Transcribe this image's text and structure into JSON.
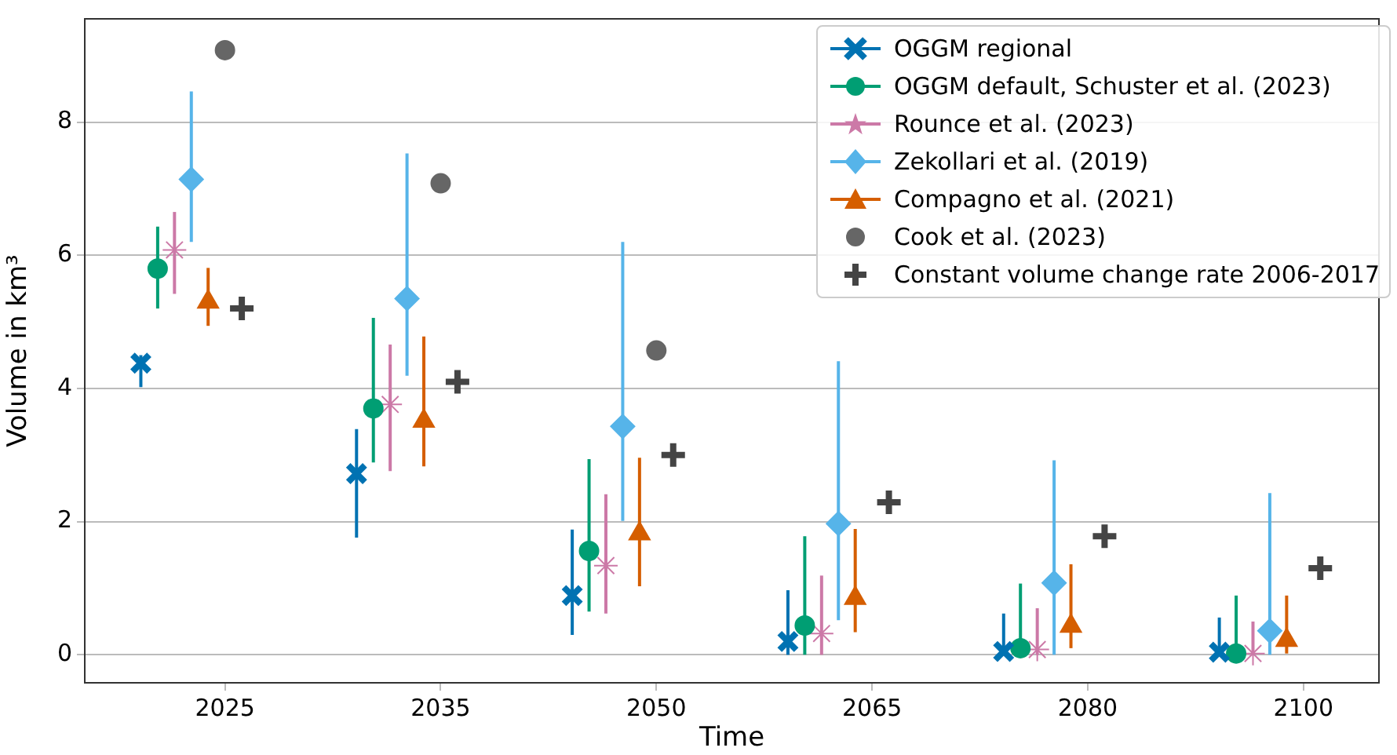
{
  "chart_data": {
    "type": "scatter",
    "xlabel": "Time",
    "ylabel": "Volume in km³",
    "categories": [
      "2025",
      "2035",
      "2050",
      "2065",
      "2080",
      "2100"
    ],
    "ylim": [
      -0.42,
      9.55
    ],
    "yticks": [
      0,
      2,
      4,
      6,
      8
    ],
    "grid": "y",
    "legend": "top right",
    "series": [
      {
        "name": "OGGM regional",
        "color": "#0072b2",
        "marker": "cross",
        "values": [
          4.38,
          2.72,
          0.89,
          0.2,
          0.05,
          0.04
        ],
        "errors": [
          [
            4.02,
            4.5
          ],
          [
            1.76,
            3.39
          ],
          [
            0.3,
            1.88
          ],
          [
            0,
            0.97
          ],
          [
            0,
            0.62
          ],
          [
            0,
            0.56
          ]
        ]
      },
      {
        "name": "OGGM default, Schuster et al. (2023)",
        "color": "#009e73",
        "marker": "circle",
        "values": [
          5.8,
          3.7,
          1.56,
          0.44,
          0.1,
          0.02
        ],
        "errors": [
          [
            5.2,
            6.43
          ],
          [
            2.89,
            5.06
          ],
          [
            0.65,
            2.94
          ],
          [
            0,
            1.78
          ],
          [
            0,
            1.07
          ],
          [
            0,
            0.89
          ]
        ]
      },
      {
        "name": "Rounce et al. (2023)",
        "color": "#cc79a7",
        "values": [
          6.08,
          3.76,
          1.34,
          0.32,
          0.08,
          0.02
        ],
        "errors": [
          [
            5.42,
            6.65
          ],
          [
            2.76,
            4.66
          ],
          [
            0.62,
            2.41
          ],
          [
            0,
            1.19
          ],
          [
            0,
            0.7
          ],
          [
            0,
            0.5
          ]
        ]
      },
      {
        "name": "Zekollari et al. (2019)",
        "color": "#56b4e9",
        "marker": "diamond",
        "values": [
          7.14,
          5.35,
          3.43,
          1.97,
          1.08,
          0.36
        ],
        "errors": [
          [
            6.2,
            8.46
          ],
          [
            4.19,
            7.53
          ],
          [
            2.01,
            6.2
          ],
          [
            0.52,
            4.41
          ],
          [
            0,
            2.92
          ],
          [
            0,
            2.43
          ]
        ]
      },
      {
        "name": "Compagno et al. (2021)",
        "color": "#d55e00",
        "marker": "triangle",
        "values": [
          5.3,
          3.51,
          1.82,
          0.85,
          0.43,
          0.22
        ],
        "errors": [
          [
            4.94,
            5.81
          ],
          [
            2.83,
            4.78
          ],
          [
            1.03,
            2.96
          ],
          [
            0.34,
            1.89
          ],
          [
            0.1,
            1.36
          ],
          [
            0.02,
            0.89
          ]
        ]
      },
      {
        "name": "Cook et al. (2023)",
        "color": "#666666",
        "marker": "circle",
        "values": [
          9.08,
          7.08,
          4.57,
          null,
          null,
          null
        ]
      },
      {
        "name": "Constant volume change rate 2006-2017",
        "color": "#444444",
        "marker": "plus",
        "values": [
          5.2,
          4.1,
          3.0,
          2.29,
          1.78,
          1.3
        ]
      }
    ]
  }
}
